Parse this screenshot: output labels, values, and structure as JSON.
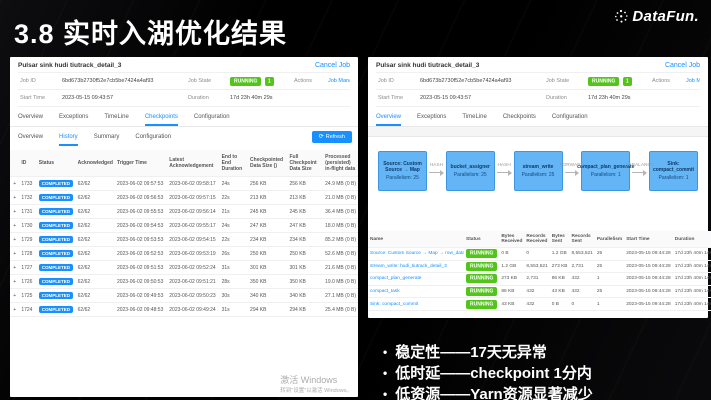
{
  "slide": {
    "title": "3.8 实时入湖优化结果",
    "logo_text": "DataFun.",
    "bullets": [
      "稳定性——17天无异常",
      "低时延——checkpoint 1分内",
      "低资源——Yarn资源显著减少"
    ]
  },
  "colors": {
    "accent_blue": "#1890ff",
    "running_green": "#52c41a",
    "completed_blue": "#1890ff",
    "dag_node_blue": "#64b5f6"
  },
  "left_panel": {
    "job_title": "Pulsar sink hudi tiutrack_detail_3",
    "cancel_label": "Cancel Job",
    "info": {
      "job_id_label": "Job ID",
      "job_id": "6bd673b2730f52e7cb5be7424a4af93",
      "job_state_label": "Job State",
      "job_state": "RUNNING",
      "job_state_count": "1",
      "actions_label": "Actions",
      "actions_link": "Job Manager Log",
      "start_time_label": "Start Time",
      "start_time": "2023-05-15 09:43:57",
      "duration_label": "Duration",
      "duration": "17d 23h 40m 29s"
    },
    "tabs": [
      "Overview",
      "Exceptions",
      "TimeLine",
      "Checkpoints",
      "Configuration"
    ],
    "active_tab": "Checkpoints",
    "subtabs": [
      "Overview",
      "History",
      "Summary",
      "Configuration"
    ],
    "active_subtab": "History",
    "refresh_label": "Refresh",
    "table": {
      "headers": [
        "",
        "ID",
        "Status",
        "Acknowledged",
        "Trigger Time",
        "Latest Acknowledgement",
        "End to End Duration",
        "Checkpointed Data Size ()",
        "Full Checkpoint Data Size",
        "Processed (persisted) in-flight data"
      ],
      "rows": [
        [
          "+",
          "1733",
          "COMPLETED",
          "62/62",
          "2023-06-02 09:57:53",
          "2023-06-02 09:58:17",
          "24s",
          "256 KB",
          "256 KB",
          "24.9 MB (0 B)"
        ],
        [
          "+",
          "1732",
          "COMPLETED",
          "62/62",
          "2023-06-02 09:56:53",
          "2023-06-02 09:57:15",
          "22s",
          "213 KB",
          "213 KB",
          "21.0 MB (0 B)"
        ],
        [
          "+",
          "1731",
          "COMPLETED",
          "62/62",
          "2023-06-02 09:55:53",
          "2023-06-02 09:56:14",
          "21s",
          "245 KB",
          "245 KB",
          "36.4 MB (0 B)"
        ],
        [
          "+",
          "1730",
          "COMPLETED",
          "62/62",
          "2023-06-02 09:54:53",
          "2023-06-02 09:55:17",
          "24s",
          "247 KB",
          "247 KB",
          "18.0 MB (0 B)"
        ],
        [
          "+",
          "1729",
          "COMPLETED",
          "62/62",
          "2023-06-02 09:53:53",
          "2023-06-02 09:54:15",
          "22s",
          "234 KB",
          "234 KB",
          "85.2 MB (0 B)"
        ],
        [
          "+",
          "1728",
          "COMPLETED",
          "62/62",
          "2023-06-02 09:52:53",
          "2023-06-02 09:53:19",
          "26s",
          "250 KB",
          "250 KB",
          "52.6 MB (0 B)"
        ],
        [
          "+",
          "1727",
          "COMPLETED",
          "62/62",
          "2023-06-02 09:51:53",
          "2023-06-02 09:52:24",
          "31s",
          "301 KB",
          "301 KB",
          "21.6 MB (0 B)"
        ],
        [
          "+",
          "1726",
          "COMPLETED",
          "62/62",
          "2023-06-02 09:50:53",
          "2023-06-02 09:51:21",
          "28s",
          "350 KB",
          "350 KB",
          "19.0 MB (0 B)"
        ],
        [
          "+",
          "1725",
          "COMPLETED",
          "62/62",
          "2023-06-02 09:49:53",
          "2023-06-02 09:50:23",
          "30s",
          "340 KB",
          "340 KB",
          "27.1 MB (0 B)"
        ],
        [
          "+",
          "1724",
          "COMPLETED",
          "62/62",
          "2023-06-02 09:48:53",
          "2023-06-02 09:49:24",
          "31s",
          "294 KB",
          "294 KB",
          "25.4 MB (0 B)"
        ]
      ]
    },
    "watermark": {
      "line1": "激活 Windows",
      "line2": "转到\"设置\"以激活 Windows。"
    }
  },
  "right_panel": {
    "job_title": "Pulsar sink hudi tiutrack_detail_3",
    "cancel_label": "Cancel Job",
    "info": {
      "job_id_label": "Job ID",
      "job_id": "6bd673b2730f52e7cb5be7424a4af93",
      "job_state_label": "Job State",
      "job_state": "RUNNING",
      "job_state_count": "1",
      "actions_label": "Actions",
      "actions_link": "Job Manager Log",
      "start_time_label": "Start Time",
      "start_time": "2023-05-15 09:43:57",
      "duration_label": "Duration",
      "duration": "17d 23h 40m 29s"
    },
    "tabs": [
      "Overview",
      "Exceptions",
      "TimeLine",
      "Checkpoints",
      "Configuration"
    ],
    "active_tab": "Overview",
    "dag": {
      "nodes": [
        {
          "name": "Source: Custom Source → Map",
          "parallelism": "Parallelism: 25"
        },
        {
          "name": "bucket_assigner",
          "parallelism": "Parallelism: 25"
        },
        {
          "name": "stream_write",
          "parallelism": "Parallelism: 25"
        },
        {
          "name": "compact_plan_generate",
          "parallelism": "Parallelism: 1"
        },
        {
          "name": "Sink: compact_commit",
          "parallelism": "Parallelism: 1"
        }
      ],
      "edge_labels": [
        "HASH",
        "HASH",
        "FORWARD",
        "REBALANCE"
      ]
    },
    "table": {
      "headers": [
        "Name",
        "Status",
        "Bytes Received",
        "Records Received",
        "Bytes Sent",
        "Records Sent",
        "Parallelism",
        "Start Time",
        "Duration",
        "End Time",
        "Tasks"
      ],
      "rows": [
        [
          "Source: Custom Source → Map → row_data_to_hoodie_record",
          "RUNNING",
          "0 B",
          "0",
          "1.2 GB",
          "8,553,521",
          "25",
          "2023-05-15 09:44:28",
          "17d 23h 40m 14s",
          "-",
          "25"
        ],
        [
          "stream_write: hudi_tiutrack_detail_3",
          "RUNNING",
          "1.2 GB",
          "8,553,521",
          "273 KB",
          "2,731",
          "25",
          "2023-05-15 09:44:28",
          "17d 23h 40m 14s",
          "-",
          "25"
        ],
        [
          "compact_plan_generate",
          "RUNNING",
          "273 KB",
          "2,731",
          "86 KB",
          "432",
          "1",
          "2023-05-15 09:44:28",
          "17d 23h 40m 14s",
          "-",
          "1"
        ],
        [
          "compact_task",
          "RUNNING",
          "86 KB",
          "432",
          "43 KB",
          "432",
          "25",
          "2023-05-15 09:44:28",
          "17d 23h 40m 14s",
          "-",
          "25"
        ],
        [
          "Sink: compact_commit",
          "RUNNING",
          "43 KB",
          "432",
          "0 B",
          "0",
          "1",
          "2023-05-15 09:44:28",
          "17d 23h 40m 14s",
          "-",
          "1"
        ]
      ]
    }
  }
}
